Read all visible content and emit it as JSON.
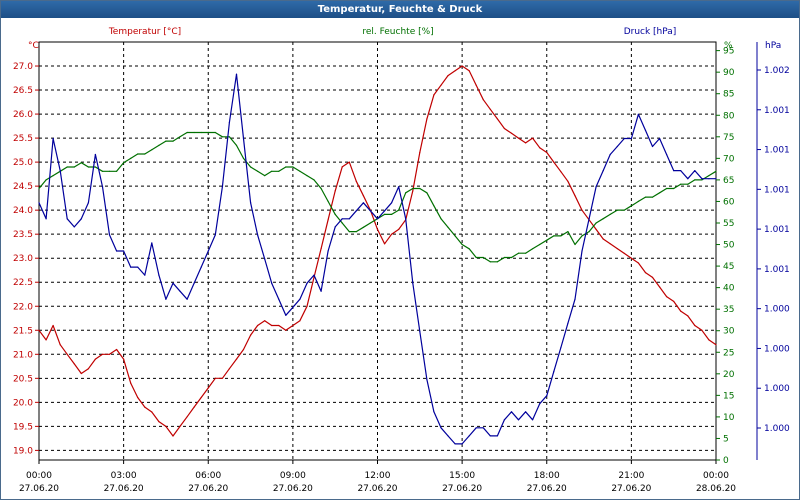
{
  "window": {
    "title": "Temperatur, Feuchte & Druck"
  },
  "colors": {
    "temperature": "#c00000",
    "humidity": "#007000",
    "pressure": "#00009c",
    "grid": "#000000",
    "text": "#000000"
  },
  "chart_data": {
    "type": "line",
    "title": "Temperatur, Feuchte & Druck",
    "x_ticks": [
      {
        "time": "00:00",
        "date": "27.06.20"
      },
      {
        "time": "03:00",
        "date": "27.06.20"
      },
      {
        "time": "06:00",
        "date": "27.06.20"
      },
      {
        "time": "09:00",
        "date": "27.06.20"
      },
      {
        "time": "12:00",
        "date": "27.06.20"
      },
      {
        "time": "15:00",
        "date": "27.06.20"
      },
      {
        "time": "18:00",
        "date": "27.06.20"
      },
      {
        "time": "21:00",
        "date": "27.06.20"
      },
      {
        "time": "00:00",
        "date": "28.06.20"
      }
    ],
    "xlim_hours": [
      0,
      24
    ],
    "axes": {
      "temperature": {
        "label": "Temperatur [°C]",
        "unit": "°C",
        "ylim": [
          18.8,
          27.5
        ],
        "ticks": [
          "27.0",
          "26.5",
          "26.0",
          "25.5",
          "25.0",
          "24.5",
          "24.0",
          "23.5",
          "23.0",
          "22.5",
          "22.0",
          "21.5",
          "21.0",
          "20.5",
          "20.0",
          "19.5",
          "19.0"
        ]
      },
      "humidity": {
        "label": "rel. Feuchte [%]",
        "unit": "%",
        "ylim": [
          0,
          97
        ],
        "ticks": [
          "95",
          "90",
          "85",
          "80",
          "75",
          "70",
          "65",
          "60",
          "55",
          "50",
          "45",
          "40",
          "35",
          "30",
          "25",
          "20",
          "15",
          "10",
          "5",
          "0"
        ]
      },
      "pressure": {
        "label": "Druck [hPa]",
        "unit": "hPa",
        "ylim": [
          999.8,
          1002.4
        ],
        "ticks": [
          "1.002",
          "1.001",
          "1.001",
          "1.001",
          "1.001",
          "1.001",
          "1.000",
          "1.000",
          "1.000",
          "1.000"
        ]
      }
    },
    "series": [
      {
        "name": "Temperatur",
        "axis": "temperature",
        "x": [
          0,
          0.25,
          0.5,
          0.75,
          1,
          1.25,
          1.5,
          1.75,
          2,
          2.25,
          2.5,
          2.75,
          3,
          3.25,
          3.5,
          3.75,
          4,
          4.25,
          4.5,
          4.75,
          5,
          5.25,
          5.5,
          5.75,
          6,
          6.25,
          6.5,
          6.75,
          7,
          7.25,
          7.5,
          7.75,
          8,
          8.25,
          8.5,
          8.75,
          9,
          9.25,
          9.5,
          9.75,
          10,
          10.25,
          10.5,
          10.75,
          11,
          11.25,
          11.5,
          11.75,
          12,
          12.25,
          12.5,
          12.75,
          13,
          13.25,
          13.5,
          13.75,
          14,
          14.25,
          14.5,
          14.75,
          15,
          15.25,
          15.5,
          15.75,
          16,
          16.25,
          16.5,
          16.75,
          17,
          17.25,
          17.5,
          17.75,
          18,
          18.25,
          18.5,
          18.75,
          19,
          19.25,
          19.5,
          19.75,
          20,
          20.25,
          20.5,
          20.75,
          21,
          21.25,
          21.5,
          21.75,
          22,
          22.25,
          22.5,
          22.75,
          23,
          23.25,
          23.5,
          23.75,
          24
        ],
        "values": [
          21.5,
          21.3,
          21.6,
          21.2,
          21.0,
          20.8,
          20.6,
          20.7,
          20.9,
          21.0,
          21.0,
          21.1,
          20.9,
          20.4,
          20.1,
          19.9,
          19.8,
          19.6,
          19.5,
          19.3,
          19.5,
          19.7,
          19.9,
          20.1,
          20.3,
          20.5,
          20.5,
          20.7,
          20.9,
          21.1,
          21.4,
          21.6,
          21.7,
          21.6,
          21.6,
          21.5,
          21.6,
          21.7,
          22.0,
          22.6,
          23.2,
          23.8,
          24.4,
          24.9,
          25.0,
          24.6,
          24.3,
          24.0,
          23.6,
          23.3,
          23.5,
          23.6,
          23.8,
          24.4,
          25.2,
          25.9,
          26.4,
          26.6,
          26.8,
          26.9,
          27.0,
          26.9,
          26.6,
          26.3,
          26.1,
          25.9,
          25.7,
          25.6,
          25.5,
          25.4,
          25.5,
          25.3,
          25.2,
          25.0,
          24.8,
          24.6,
          24.3,
          24.0,
          23.8,
          23.6,
          23.4,
          23.3,
          23.2,
          23.1,
          23.0,
          22.9,
          22.7,
          22.6,
          22.4,
          22.2,
          22.1,
          21.9,
          21.8,
          21.6,
          21.5,
          21.3,
          21.2
        ]
      },
      {
        "name": "rel. Feuchte",
        "axis": "humidity",
        "x": [
          0,
          0.25,
          0.5,
          0.75,
          1,
          1.25,
          1.5,
          1.75,
          2,
          2.25,
          2.5,
          2.75,
          3,
          3.25,
          3.5,
          3.75,
          4,
          4.25,
          4.5,
          4.75,
          5,
          5.25,
          5.5,
          5.75,
          6,
          6.25,
          6.5,
          6.75,
          7,
          7.25,
          7.5,
          7.75,
          8,
          8.25,
          8.5,
          8.75,
          9,
          9.25,
          9.5,
          9.75,
          10,
          10.25,
          10.5,
          10.75,
          11,
          11.25,
          11.5,
          11.75,
          12,
          12.25,
          12.5,
          12.75,
          13,
          13.25,
          13.5,
          13.75,
          14,
          14.25,
          14.5,
          14.75,
          15,
          15.25,
          15.5,
          15.75,
          16,
          16.25,
          16.5,
          16.75,
          17,
          17.25,
          17.5,
          17.75,
          18,
          18.25,
          18.5,
          18.75,
          19,
          19.25,
          19.5,
          19.75,
          20,
          20.25,
          20.5,
          20.75,
          21,
          21.25,
          21.5,
          21.75,
          22,
          22.25,
          22.5,
          22.75,
          23,
          23.25,
          23.5,
          23.75,
          24
        ],
        "values": [
          63,
          65,
          66,
          67,
          68,
          68,
          69,
          68,
          68,
          67,
          67,
          67,
          69,
          70,
          71,
          71,
          72,
          73,
          74,
          74,
          75,
          76,
          76,
          76,
          76,
          76,
          75,
          75,
          73,
          70,
          68,
          67,
          66,
          67,
          67,
          68,
          68,
          67,
          66,
          65,
          63,
          60,
          57,
          55,
          53,
          53,
          54,
          55,
          56,
          57,
          57,
          58,
          62,
          63,
          63,
          62,
          59,
          56,
          54,
          52,
          50,
          49,
          47,
          47,
          46,
          46,
          47,
          47,
          48,
          48,
          49,
          50,
          51,
          52,
          52,
          53,
          50,
          52,
          53,
          55,
          56,
          57,
          58,
          58,
          59,
          60,
          61,
          61,
          62,
          63,
          63,
          64,
          64,
          65,
          65,
          66,
          67
        ]
      },
      {
        "name": "Druck",
        "axis": "pressure",
        "x": [
          0,
          0.25,
          0.5,
          0.75,
          1,
          1.25,
          1.5,
          1.75,
          2,
          2.25,
          2.5,
          2.75,
          3,
          3.25,
          3.5,
          3.75,
          4,
          4.25,
          4.5,
          4.75,
          5,
          5.25,
          5.5,
          5.75,
          6,
          6.25,
          6.5,
          6.75,
          7,
          7.25,
          7.5,
          7.75,
          8,
          8.25,
          8.5,
          8.75,
          9,
          9.25,
          9.5,
          9.75,
          10,
          10.25,
          10.5,
          10.75,
          11,
          11.25,
          11.5,
          11.75,
          12,
          12.25,
          12.5,
          12.75,
          13,
          13.25,
          13.5,
          13.75,
          14,
          14.25,
          14.5,
          14.75,
          15,
          15.25,
          15.5,
          15.75,
          16,
          16.25,
          16.5,
          16.75,
          17,
          17.25,
          17.5,
          17.75,
          18,
          18.25,
          18.5,
          18.75,
          19,
          19.25,
          19.5,
          19.75,
          20,
          20.25,
          20.5,
          20.75,
          21,
          21.25,
          21.5,
          21.75,
          22,
          22.25,
          22.5,
          22.75,
          23,
          23.25,
          23.5,
          23.75,
          24
        ],
        "values": [
          1001.4,
          1001.3,
          1001.8,
          1001.6,
          1001.3,
          1001.25,
          1001.3,
          1001.4,
          1001.7,
          1001.5,
          1001.2,
          1001.1,
          1001.1,
          1001.0,
          1001.0,
          1000.95,
          1001.15,
          1000.95,
          1000.8,
          1000.9,
          1000.85,
          1000.8,
          1000.9,
          1001.0,
          1001.1,
          1001.2,
          1001.5,
          1001.9,
          1002.2,
          1001.8,
          1001.4,
          1001.2,
          1001.05,
          1000.9,
          1000.8,
          1000.7,
          1000.75,
          1000.8,
          1000.9,
          1000.95,
          1000.85,
          1001.1,
          1001.25,
          1001.3,
          1001.3,
          1001.35,
          1001.4,
          1001.35,
          1001.3,
          1001.35,
          1001.4,
          1001.5,
          1001.3,
          1000.9,
          1000.6,
          1000.3,
          1000.1,
          1000.0,
          999.95,
          999.9,
          999.9,
          999.95,
          1000.0,
          1000.0,
          999.95,
          999.95,
          1000.05,
          1000.1,
          1000.05,
          1000.1,
          1000.05,
          1000.15,
          1000.2,
          1000.35,
          1000.5,
          1000.65,
          1000.8,
          1001.1,
          1001.3,
          1001.5,
          1001.6,
          1001.7,
          1001.75,
          1001.8,
          1001.8,
          1001.95,
          1001.85,
          1001.75,
          1001.8,
          1001.7,
          1001.6,
          1001.6,
          1001.55,
          1001.6,
          1001.55,
          1001.55,
          1001.55
        ]
      }
    ]
  }
}
